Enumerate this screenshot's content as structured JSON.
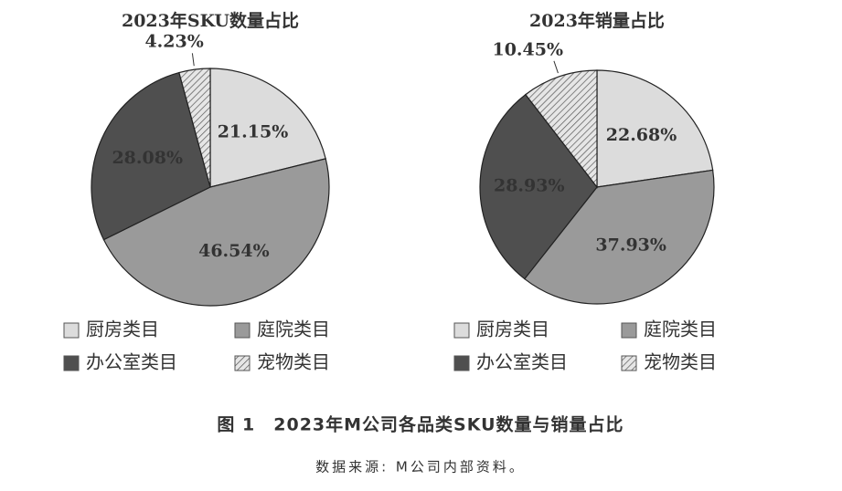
{
  "chart_data": [
    {
      "type": "pie",
      "title": "2023年SKU数量占比",
      "categories": [
        "厨房类目",
        "庭院类目",
        "办公室类目",
        "宠物类目"
      ],
      "values": [
        21.15,
        46.54,
        28.08,
        4.23
      ],
      "value_labels": [
        "21.15%",
        "46.54%",
        "28.08%",
        "4.23%"
      ],
      "colors": [
        "#dcdcdc",
        "#9a9a9a",
        "#4f4f4f",
        "#e0e0e0"
      ],
      "hatched": [
        false,
        false,
        false,
        true
      ]
    },
    {
      "type": "pie",
      "title": "2023年销量占比",
      "categories": [
        "厨房类目",
        "庭院类目",
        "办公室类目",
        "宠物类目"
      ],
      "values": [
        22.68,
        37.93,
        28.93,
        10.45
      ],
      "value_labels": [
        "22.68%",
        "37.93%",
        "28.93%",
        "10.45%"
      ],
      "colors": [
        "#dcdcdc",
        "#9a9a9a",
        "#4f4f4f",
        "#e0e0e0"
      ],
      "hatched": [
        false,
        false,
        false,
        true
      ]
    }
  ],
  "caption": "图 1　2023年M公司各品类SKU数量与销量占比",
  "source": "数据来源: M公司内部资料。"
}
